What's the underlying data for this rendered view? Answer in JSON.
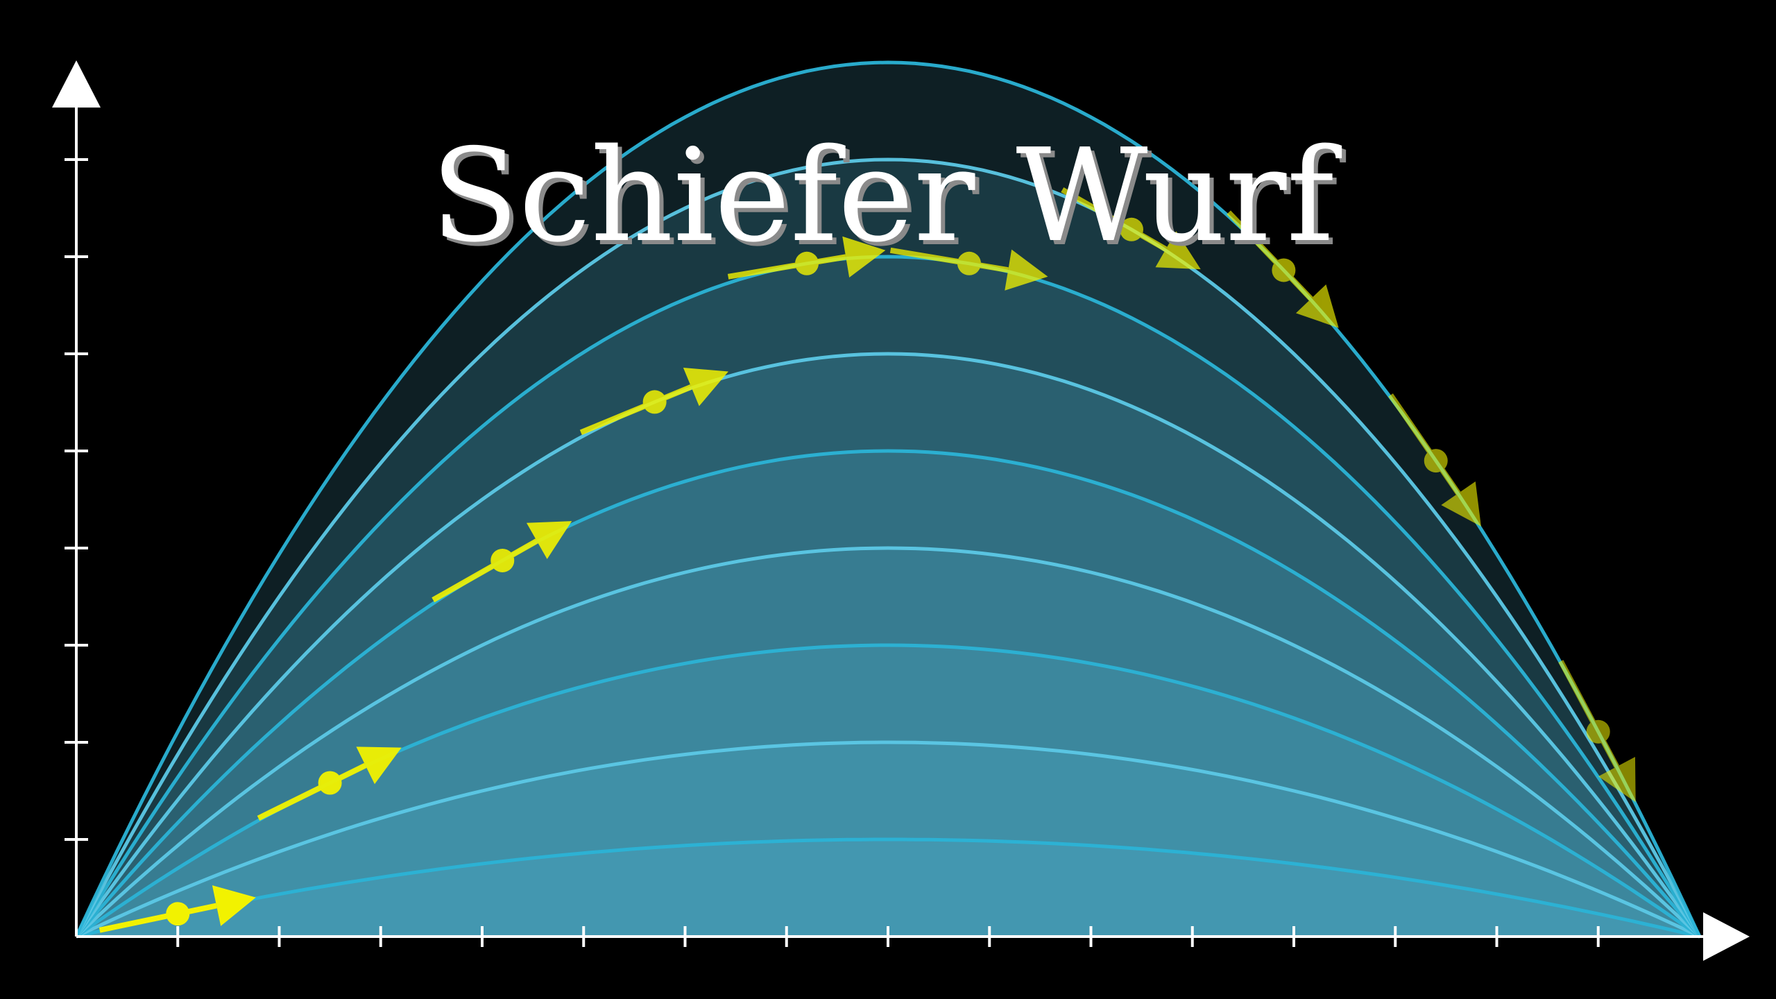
{
  "title": "Schiefer Wurf",
  "colors": {
    "background": "#000000",
    "curve": "#2bb3d6",
    "curve_light": "#5cc8e6",
    "fill": "#57c3e3",
    "axis": "#ffffff",
    "arrow": "#f2f200",
    "title": "#ffffff"
  },
  "chart_data": {
    "type": "line",
    "description_free": true,
    "x_ticks": 16,
    "y_ticks": 8,
    "trajectories": [
      {
        "peak": 1.0
      },
      {
        "peak": 2.0
      },
      {
        "peak": 3.0
      },
      {
        "peak": 4.0
      },
      {
        "peak": 5.0
      },
      {
        "peak": 6.0
      },
      {
        "peak": 7.0
      },
      {
        "peak": 8.0
      },
      {
        "peak": 9.0
      }
    ],
    "velocity_vectors": [
      {
        "trajectory": 0,
        "x": 1.0
      },
      {
        "trajectory": 2,
        "x": 2.5
      },
      {
        "trajectory": 4,
        "x": 4.2
      },
      {
        "trajectory": 5,
        "x": 5.7
      },
      {
        "trajectory": 6,
        "x": 7.2
      },
      {
        "trajectory": 6,
        "x": 8.8
      },
      {
        "trajectory": 7,
        "x": 10.4
      },
      {
        "trajectory": 8,
        "x": 11.9
      },
      {
        "trajectory": 8,
        "x": 13.4
      },
      {
        "trajectory": 8,
        "x": 15.0
      }
    ]
  }
}
